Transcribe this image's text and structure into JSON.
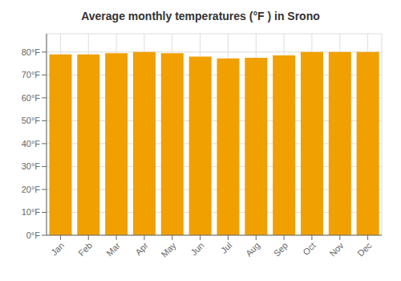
{
  "chart_data": {
    "type": "bar",
    "title": "Average monthly temperatures (°F ) in Srono",
    "categories": [
      "Jan",
      "Feb",
      "Mar",
      "Apr",
      "May",
      "Jun",
      "Jul",
      "Aug",
      "Sep",
      "Oct",
      "Nov",
      "Dec"
    ],
    "values": [
      79.0,
      79.0,
      79.5,
      80.0,
      79.5,
      78.0,
      77.2,
      77.5,
      78.5,
      80.0,
      80.0,
      80.0
    ],
    "color": "#F0A000",
    "ylim": [
      0,
      88
    ],
    "yticks": [
      {
        "value": 0,
        "label": "0°F"
      },
      {
        "value": 10,
        "label": "10°F"
      },
      {
        "value": 20,
        "label": "20°F"
      },
      {
        "value": 30,
        "label": "30°F"
      },
      {
        "value": 40,
        "label": "40°F"
      },
      {
        "value": 50,
        "label": "50°F"
      },
      {
        "value": 60,
        "label": "60°F"
      },
      {
        "value": 70,
        "label": "70°F"
      },
      {
        "value": 80,
        "label": "80°F"
      }
    ],
    "grid": true
  }
}
